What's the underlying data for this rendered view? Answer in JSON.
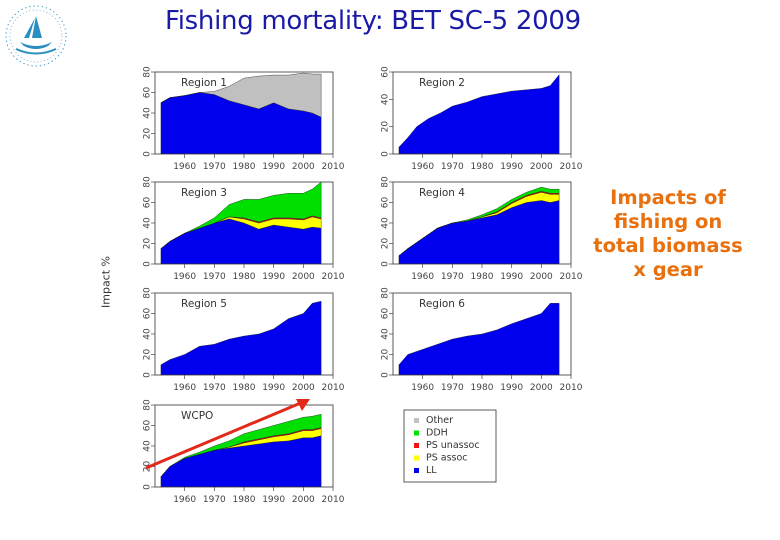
{
  "title": "Fishing mortality: BET SC-5 2009",
  "annotation": [
    "Impacts of",
    "fishing on",
    "total biomass",
    "x gear"
  ],
  "ylabel": "Impact %",
  "colors": {
    "Other": "#c0c0c0",
    "DDH": "#00e000",
    "PS unassoc": "#ee1111",
    "PS assoc": "#ffff00",
    "LL": "#0000ee",
    "title": "#1a1aa6",
    "annotation": "#e8700e",
    "arrow": "#e32a1a"
  },
  "legend": {
    "entries": [
      "Other",
      "DDH",
      "PS unassoc",
      "PS assoc",
      "LL"
    ]
  },
  "chart_data": [
    {
      "type": "area",
      "title": "Region 1",
      "x": [
        1952,
        1955,
        1960,
        1965,
        1970,
        1975,
        1980,
        1985,
        1990,
        1995,
        2000,
        2003,
        2006
      ],
      "series": [
        {
          "name": "LL",
          "values": [
            50,
            55,
            57,
            60,
            58,
            52,
            48,
            44,
            50,
            44,
            42,
            40,
            36
          ]
        },
        {
          "name": "PS assoc",
          "values": [
            0,
            0,
            0,
            0,
            0,
            0,
            0,
            0,
            0,
            0,
            0,
            0,
            0
          ]
        },
        {
          "name": "PS unassoc",
          "values": [
            0,
            0,
            0,
            0,
            0,
            0,
            0,
            0,
            0,
            0,
            0,
            0,
            0
          ]
        },
        {
          "name": "DDH",
          "values": [
            0,
            0,
            0,
            0,
            0,
            0,
            0,
            0,
            0,
            0,
            0,
            0,
            0
          ]
        },
        {
          "name": "Other",
          "values": [
            0,
            0,
            0,
            0,
            3,
            14,
            26,
            32,
            27,
            33,
            37,
            38,
            42
          ]
        }
      ],
      "xlim": [
        1950,
        2010
      ],
      "ylim": [
        0,
        80
      ],
      "xticks": [
        "1960",
        "1970",
        "1980",
        "1990",
        "2000",
        "2010"
      ],
      "yticks": [
        "0",
        "20",
        "40",
        "60",
        "80"
      ]
    },
    {
      "type": "area",
      "title": "Region 2",
      "x": [
        1952,
        1955,
        1958,
        1962,
        1966,
        1970,
        1975,
        1980,
        1985,
        1990,
        1995,
        2000,
        2003,
        2006
      ],
      "series": [
        {
          "name": "LL",
          "values": [
            5,
            12,
            20,
            26,
            30,
            35,
            38,
            42,
            44,
            46,
            47,
            48,
            50,
            58
          ]
        },
        {
          "name": "PS assoc",
          "values": [
            0,
            0,
            0,
            0,
            0,
            0,
            0,
            0,
            0,
            0,
            0,
            0,
            0,
            0
          ]
        },
        {
          "name": "PS unassoc",
          "values": [
            0,
            0,
            0,
            0,
            0,
            0,
            0,
            0,
            0,
            0,
            0,
            0,
            0,
            0
          ]
        },
        {
          "name": "DDH",
          "values": [
            0,
            0,
            0,
            0,
            0,
            0,
            0,
            0,
            0,
            0,
            0,
            0,
            0,
            0
          ]
        },
        {
          "name": "Other",
          "values": [
            0,
            0,
            0,
            0,
            0,
            0,
            0,
            0,
            0,
            0,
            0,
            0,
            0,
            0
          ]
        }
      ],
      "xlim": [
        1950,
        2010
      ],
      "ylim": [
        0,
        60
      ],
      "xticks": [
        "1960",
        "1970",
        "1980",
        "1990",
        "2000",
        "2010"
      ],
      "yticks": [
        "0",
        "20",
        "40",
        "60"
      ]
    },
    {
      "type": "area",
      "title": "Region 3",
      "x": [
        1952,
        1955,
        1960,
        1965,
        1970,
        1975,
        1980,
        1985,
        1990,
        1995,
        2000,
        2003,
        2006
      ],
      "series": [
        {
          "name": "LL",
          "values": [
            15,
            22,
            30,
            35,
            40,
            44,
            40,
            34,
            38,
            36,
            34,
            36,
            35
          ]
        },
        {
          "name": "PS assoc",
          "values": [
            0,
            0,
            0,
            0,
            0,
            2,
            4,
            6,
            6,
            8,
            9,
            10,
            9
          ]
        },
        {
          "name": "PS unassoc",
          "values": [
            0,
            0,
            0,
            0,
            0,
            0,
            1,
            1,
            1,
            1,
            1,
            1,
            1
          ]
        },
        {
          "name": "DDH",
          "values": [
            0,
            0,
            0,
            2,
            5,
            12,
            18,
            22,
            22,
            24,
            25,
            26,
            35
          ]
        },
        {
          "name": "Other",
          "values": [
            0,
            0,
            0,
            0,
            0,
            0,
            0,
            0,
            0,
            0,
            0,
            0,
            0
          ]
        }
      ],
      "xlim": [
        1950,
        2010
      ],
      "ylim": [
        0,
        80
      ],
      "xticks": [
        "1960",
        "1970",
        "1980",
        "1990",
        "2000",
        "2010"
      ],
      "yticks": [
        "0",
        "20",
        "40",
        "60",
        "80"
      ]
    },
    {
      "type": "area",
      "title": "Region 4",
      "x": [
        1952,
        1955,
        1960,
        1965,
        1970,
        1975,
        1980,
        1985,
        1990,
        1995,
        2000,
        2003,
        2006
      ],
      "series": [
        {
          "name": "LL",
          "values": [
            8,
            15,
            25,
            35,
            40,
            42,
            45,
            48,
            55,
            60,
            62,
            60,
            62
          ]
        },
        {
          "name": "PS assoc",
          "values": [
            0,
            0,
            0,
            0,
            0,
            0,
            1,
            2,
            4,
            6,
            8,
            8,
            6
          ]
        },
        {
          "name": "PS unassoc",
          "values": [
            0,
            0,
            0,
            0,
            0,
            0,
            0,
            1,
            1,
            1,
            1,
            1,
            1
          ]
        },
        {
          "name": "DDH",
          "values": [
            0,
            0,
            0,
            0,
            0,
            1,
            2,
            3,
            3,
            3,
            4,
            4,
            4
          ]
        },
        {
          "name": "Other",
          "values": [
            0,
            0,
            0,
            0,
            0,
            0,
            0,
            0,
            0,
            0,
            0,
            0,
            0
          ]
        }
      ],
      "xlim": [
        1950,
        2010
      ],
      "ylim": [
        0,
        80
      ],
      "xticks": [
        "1960",
        "1970",
        "1980",
        "1990",
        "2000",
        "2010"
      ],
      "yticks": [
        "0",
        "20",
        "40",
        "60",
        "80"
      ]
    },
    {
      "type": "area",
      "title": "Region 5",
      "x": [
        1952,
        1955,
        1960,
        1965,
        1970,
        1975,
        1980,
        1985,
        1990,
        1995,
        2000,
        2003,
        2006
      ],
      "series": [
        {
          "name": "LL",
          "values": [
            10,
            15,
            20,
            28,
            30,
            35,
            38,
            40,
            45,
            55,
            60,
            70,
            72
          ]
        },
        {
          "name": "PS assoc",
          "values": [
            0,
            0,
            0,
            0,
            0,
            0,
            0,
            0,
            0,
            0,
            0,
            0,
            0
          ]
        },
        {
          "name": "PS unassoc",
          "values": [
            0,
            0,
            0,
            0,
            0,
            0,
            0,
            0,
            0,
            0,
            0,
            0,
            0
          ]
        },
        {
          "name": "DDH",
          "values": [
            0,
            0,
            0,
            0,
            0,
            0,
            0,
            0,
            0,
            0,
            0,
            0,
            0
          ]
        },
        {
          "name": "Other",
          "values": [
            0,
            0,
            0,
            0,
            0,
            0,
            0,
            0,
            0,
            0,
            0,
            0,
            0
          ]
        }
      ],
      "xlim": [
        1950,
        2010
      ],
      "ylim": [
        0,
        80
      ],
      "xticks": [
        "1960",
        "1970",
        "1980",
        "1990",
        "2000",
        "2010"
      ],
      "yticks": [
        "0",
        "20",
        "40",
        "60",
        "80"
      ]
    },
    {
      "type": "area",
      "title": "Region 6",
      "x": [
        1952,
        1955,
        1960,
        1965,
        1970,
        1975,
        1980,
        1985,
        1990,
        1995,
        2000,
        2003,
        2006
      ],
      "series": [
        {
          "name": "LL",
          "values": [
            10,
            20,
            25,
            30,
            35,
            38,
            40,
            44,
            50,
            55,
            60,
            70,
            70
          ]
        },
        {
          "name": "PS assoc",
          "values": [
            0,
            0,
            0,
            0,
            0,
            0,
            0,
            0,
            0,
            0,
            0,
            0,
            0
          ]
        },
        {
          "name": "PS unassoc",
          "values": [
            0,
            0,
            0,
            0,
            0,
            0,
            0,
            0,
            0,
            0,
            0,
            0,
            0
          ]
        },
        {
          "name": "DDH",
          "values": [
            0,
            0,
            0,
            0,
            0,
            0,
            0,
            0,
            0,
            0,
            0,
            0,
            0
          ]
        },
        {
          "name": "Other",
          "values": [
            0,
            0,
            0,
            0,
            0,
            0,
            0,
            0,
            0,
            0,
            0,
            0,
            0
          ]
        }
      ],
      "xlim": [
        1950,
        2010
      ],
      "ylim": [
        0,
        80
      ],
      "xticks": [
        "1960",
        "1970",
        "1980",
        "1990",
        "2000",
        "2010"
      ],
      "yticks": [
        "0",
        "20",
        "40",
        "60",
        "80"
      ]
    },
    {
      "type": "area",
      "title": "WCPO",
      "x": [
        1952,
        1955,
        1960,
        1965,
        1970,
        1975,
        1980,
        1985,
        1990,
        1995,
        2000,
        2003,
        2006
      ],
      "series": [
        {
          "name": "LL",
          "values": [
            10,
            20,
            28,
            32,
            36,
            38,
            40,
            42,
            44,
            45,
            48,
            48,
            50
          ]
        },
        {
          "name": "PS assoc",
          "values": [
            0,
            0,
            0,
            0,
            0,
            1,
            3,
            4,
            5,
            6,
            7,
            7,
            7
          ]
        },
        {
          "name": "PS unassoc",
          "values": [
            0,
            0,
            0,
            0,
            0,
            0,
            1,
            1,
            1,
            1,
            1,
            1,
            1
          ]
        },
        {
          "name": "DDH",
          "values": [
            0,
            0,
            1,
            2,
            4,
            6,
            8,
            9,
            10,
            12,
            12,
            13,
            13
          ]
        },
        {
          "name": "Other",
          "values": [
            0,
            0,
            0,
            0,
            0,
            0,
            0,
            0,
            0,
            0,
            0,
            0,
            0
          ]
        }
      ],
      "xlim": [
        1950,
        2010
      ],
      "ylim": [
        0,
        80
      ],
      "xticks": [
        "1960",
        "1970",
        "1980",
        "1990",
        "2000",
        "2010"
      ],
      "yticks": [
        "0",
        "20",
        "40",
        "60",
        "80"
      ]
    }
  ]
}
